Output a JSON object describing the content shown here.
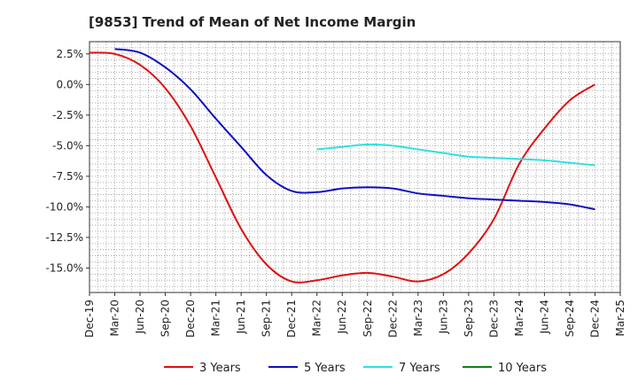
{
  "chart_data": {
    "type": "line",
    "title": "[9853]  Trend of Mean of Net Income Margin",
    "xlabel": "",
    "ylabel": "",
    "x_ticks": [
      "Dec-19",
      "Mar-20",
      "Jun-20",
      "Sep-20",
      "Dec-20",
      "Mar-21",
      "Jun-21",
      "Sep-21",
      "Dec-21",
      "Mar-22",
      "Jun-22",
      "Sep-22",
      "Dec-22",
      "Mar-23",
      "Jun-23",
      "Sep-23",
      "Dec-23",
      "Mar-24",
      "Jun-24",
      "Sep-24",
      "Dec-24",
      "Mar-25"
    ],
    "y_ticks": [
      "2.5%",
      "0.0%",
      "-2.5%",
      "-5.0%",
      "-7.5%",
      "-10.0%",
      "-12.5%",
      "-15.0%"
    ],
    "y_tick_values": [
      2.5,
      0,
      -2.5,
      -5,
      -7.5,
      -10,
      -12.5,
      -15
    ],
    "ylim": [
      -17.0,
      3.5
    ],
    "grid": true,
    "legend_position": "bottom",
    "series": [
      {
        "name": "3 Years",
        "color": "#e01010",
        "x": [
          "Dec-19",
          "Mar-20",
          "Jun-20",
          "Sep-20",
          "Dec-20",
          "Mar-21",
          "Jun-21",
          "Sep-21",
          "Dec-21",
          "Mar-22",
          "Jun-22",
          "Sep-22",
          "Dec-22",
          "Mar-23",
          "Jun-23",
          "Sep-23",
          "Dec-23",
          "Mar-24",
          "Jun-24",
          "Sep-24",
          "Dec-24"
        ],
        "values": [
          2.6,
          2.5,
          1.6,
          -0.3,
          -3.4,
          -7.6,
          -11.8,
          -14.7,
          -16.1,
          -16.0,
          -15.6,
          -15.4,
          -15.7,
          -16.1,
          -15.5,
          -13.8,
          -11.0,
          -6.5,
          -3.6,
          -1.3,
          0.0
        ]
      },
      {
        "name": "5 Years",
        "color": "#1010c0",
        "x": [
          "Mar-20",
          "Jun-20",
          "Sep-20",
          "Dec-20",
          "Mar-21",
          "Jun-21",
          "Sep-21",
          "Dec-21",
          "Mar-22",
          "Jun-22",
          "Sep-22",
          "Dec-22",
          "Mar-23",
          "Jun-23",
          "Sep-23",
          "Dec-23",
          "Mar-24",
          "Jun-24",
          "Sep-24",
          "Dec-24"
        ],
        "values": [
          2.9,
          2.6,
          1.4,
          -0.4,
          -2.8,
          -5.1,
          -7.4,
          -8.7,
          -8.8,
          -8.5,
          -8.4,
          -8.5,
          -8.9,
          -9.1,
          -9.3,
          -9.4,
          -9.5,
          -9.6,
          -9.8,
          -10.2
        ]
      },
      {
        "name": "7 Years",
        "color": "#30e0e0",
        "x": [
          "Mar-22",
          "Jun-22",
          "Sep-22",
          "Dec-22",
          "Mar-23",
          "Jun-23",
          "Sep-23",
          "Dec-23",
          "Mar-24",
          "Jun-24",
          "Sep-24",
          "Dec-24"
        ],
        "values": [
          -5.3,
          -5.1,
          -4.9,
          -5.0,
          -5.3,
          -5.6,
          -5.9,
          -6.0,
          -6.1,
          -6.2,
          -6.4,
          -6.6
        ]
      },
      {
        "name": "10 Years",
        "color": "#108010",
        "x": [],
        "values": []
      }
    ]
  }
}
